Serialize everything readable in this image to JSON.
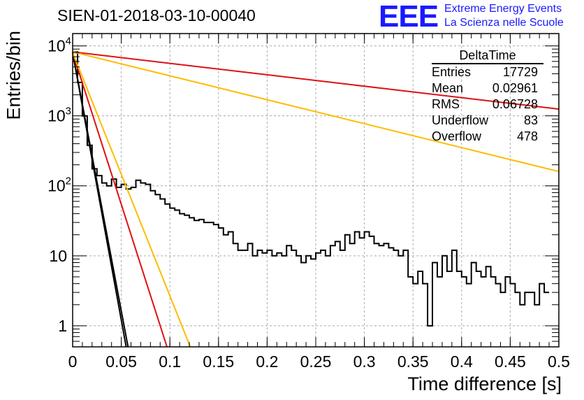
{
  "header": {
    "title": "SIEN-01-2018-03-10-00040",
    "logo_text": "EEE",
    "logo_line1": "Extreme Energy Events",
    "logo_line2": "La Scienza nelle Scuole"
  },
  "stats_box": {
    "title": "DeltaTime",
    "rows": [
      {
        "label": "Entries",
        "value": "17729"
      },
      {
        "label": "Mean",
        "value": "0.02961"
      },
      {
        "label": "RMS",
        "value": "0.06728"
      },
      {
        "label": "Underflow",
        "value": "83"
      },
      {
        "label": "Overflow",
        "value": "478"
      }
    ]
  },
  "chart_data": {
    "type": "histogram",
    "xlabel": "Time difference [s]",
    "ylabel": "Entries/bin",
    "xlim": [
      0,
      0.5
    ],
    "ylim": [
      0.5,
      15000
    ],
    "yscale": "log",
    "grid": true,
    "x_ticks": [
      "0",
      "0.05",
      "0.1",
      "0.15",
      "0.2",
      "0.25",
      "0.3",
      "0.35",
      "0.4",
      "0.45",
      "0.5"
    ],
    "y_ticks": [
      {
        "value": 1,
        "label": "1"
      },
      {
        "value": 10,
        "label": "10"
      },
      {
        "value": 100,
        "label": "10",
        "exp": "2"
      },
      {
        "value": 1000,
        "label": "10",
        "exp": "3"
      },
      {
        "value": 10000,
        "label": "10",
        "exp": "4"
      }
    ],
    "histogram": {
      "bin_width": 0.005,
      "bin_start": 0,
      "values": [
        8200,
        3000,
        1000,
        380,
        175,
        140,
        110,
        100,
        125,
        95,
        105,
        90,
        95,
        120,
        110,
        105,
        85,
        75,
        65,
        55,
        48,
        45,
        40,
        38,
        35,
        32,
        33,
        30,
        30,
        28,
        25,
        20,
        22,
        15,
        12,
        12,
        15,
        10,
        12,
        11,
        12,
        10,
        11,
        10,
        14,
        12,
        10,
        8,
        10,
        9,
        11,
        12,
        10,
        14,
        16,
        12,
        20,
        15,
        22,
        18,
        22,
        19,
        15,
        14,
        15,
        13,
        12,
        10,
        12,
        5,
        4,
        6,
        4,
        1,
        8,
        5,
        10,
        6,
        12,
        6,
        5,
        4,
        8,
        6,
        5,
        7,
        5,
        4,
        3,
        5,
        4,
        3,
        2,
        3,
        3,
        2,
        4,
        3
      ]
    },
    "series": [
      {
        "color": "#000000",
        "x": [
          0,
          0.057
        ],
        "y": [
          8000,
          0.5
        ]
      },
      {
        "color": "#000000",
        "x": [
          0,
          0.055
        ],
        "y": [
          8000,
          0.5
        ]
      },
      {
        "color": "#dd1111",
        "x": [
          0,
          0.097
        ],
        "y": [
          8000,
          0.5
        ]
      },
      {
        "color": "#ffbb00",
        "x": [
          0,
          0.121
        ],
        "y": [
          8000,
          0.5
        ]
      },
      {
        "color": "#dd1111",
        "x": [
          0,
          0.5
        ],
        "y": [
          8200,
          1250
        ]
      },
      {
        "color": "#ffbb00",
        "x": [
          0,
          0.5
        ],
        "y": [
          8200,
          160
        ]
      }
    ]
  }
}
